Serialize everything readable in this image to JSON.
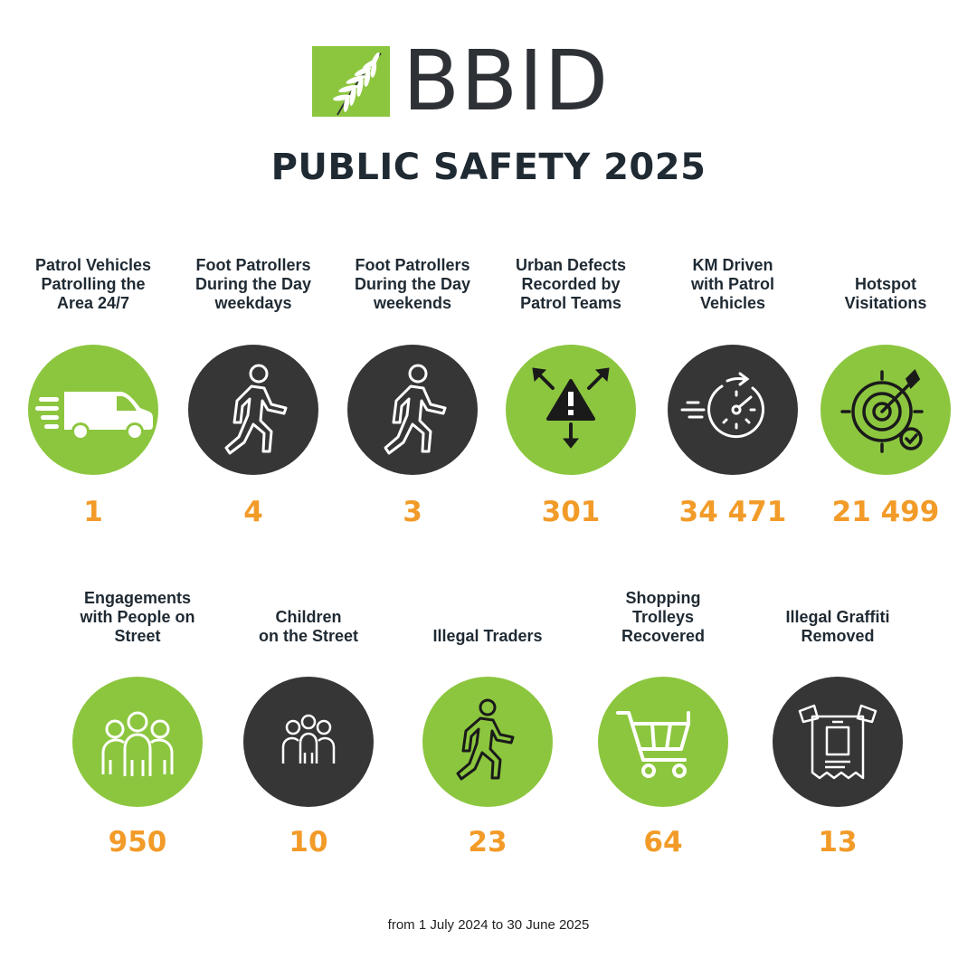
{
  "brand": {
    "name": "BBID",
    "green": "#8cc63f",
    "dark": "#363636",
    "accent": "#f29b28"
  },
  "title": "PUBLIC SAFETY 2025",
  "stats_row1": [
    {
      "label": "Patrol Vehicles\nPatrolling the\nArea 24/7",
      "value": "1",
      "icon": "van-icon",
      "style": "green"
    },
    {
      "label": "Foot Patrollers\nDuring the Day\nweekdays",
      "value": "4",
      "icon": "walking-person-icon",
      "style": "dark"
    },
    {
      "label": "Foot Patrollers\nDuring the Day\nweekends",
      "value": "3",
      "icon": "walking-person-icon",
      "style": "dark"
    },
    {
      "label": "Urban Defects\nRecorded by\nPatrol Teams",
      "value": "301",
      "icon": "warning-arrows-icon",
      "style": "green"
    },
    {
      "label": "KM Driven\nwith Patrol\nVehicles",
      "value": "34 471",
      "icon": "speedometer-icon",
      "style": "dark"
    },
    {
      "label": "Hotspot\nVisitations",
      "value": "21 499",
      "icon": "target-icon",
      "style": "green"
    }
  ],
  "stats_row2": [
    {
      "label": "Engagements\nwith People on\nStreet",
      "value": "950",
      "icon": "group-people-icon",
      "style": "green"
    },
    {
      "label": "Children\non the Street",
      "value": "10",
      "icon": "children-group-icon",
      "style": "dark"
    },
    {
      "label": "Illegal Traders",
      "value": "23",
      "icon": "walking-person-icon",
      "style": "green"
    },
    {
      "label": "Shopping\nTrolleys\nRecovered",
      "value": "64",
      "icon": "shopping-cart-icon",
      "style": "green"
    },
    {
      "label": "Illegal Graffiti\nRemoved",
      "value": "13",
      "icon": "poster-icon",
      "style": "dark"
    }
  ],
  "footer": "from 1 July 2024 to 30 June 2025"
}
